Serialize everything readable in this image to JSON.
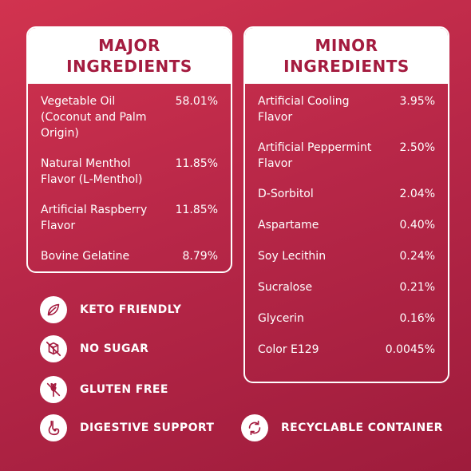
{
  "major": {
    "title_line1": "MAJOR",
    "title_line2": "INGREDIENTS",
    "items": [
      {
        "name": "Vegetable Oil (Coconut and Palm Origin)",
        "pct": "58.01%"
      },
      {
        "name": "Natural Menthol Flavor (L-Menthol)",
        "pct": "11.85%"
      },
      {
        "name": "Artificial Raspberry Flavor",
        "pct": "11.85%"
      },
      {
        "name": "Bovine Gelatine",
        "pct": "8.79%"
      }
    ]
  },
  "minor": {
    "title_line1": "MINOR",
    "title_line2": "INGREDIENTS",
    "items": [
      {
        "name": "Artificial Cooling Flavor",
        "pct": "3.95%"
      },
      {
        "name": "Artificial Peppermint Flavor",
        "pct": "2.50%"
      },
      {
        "name": "D-Sorbitol",
        "pct": "2.04%"
      },
      {
        "name": "Aspartame",
        "pct": "0.40%"
      },
      {
        "name": "Soy Lecithin",
        "pct": "0.24%"
      },
      {
        "name": "Sucralose",
        "pct": "0.21%"
      },
      {
        "name": "Glycerin",
        "pct": "0.16%"
      },
      {
        "name": "Color E129",
        "pct": "0.0045%"
      }
    ]
  },
  "badges": {
    "keto": {
      "label": "KETO FRIENDLY",
      "icon": "leaf-icon"
    },
    "sugar": {
      "label": "NO SUGAR",
      "icon": "no-sugar-icon"
    },
    "gluten": {
      "label": "GLUTEN FREE",
      "icon": "wheat-crossed-icon"
    },
    "digestive": {
      "label": "DIGESTIVE SUPPORT",
      "icon": "stomach-icon"
    },
    "recyclable": {
      "label": "RECYCLABLE CONTAINER",
      "icon": "recycle-icon"
    }
  },
  "colors": {
    "background_start": "#d1334f",
    "background_end": "#9e1c3c",
    "heading_text": "#a41b3f",
    "panel_border": "#ffffff"
  }
}
